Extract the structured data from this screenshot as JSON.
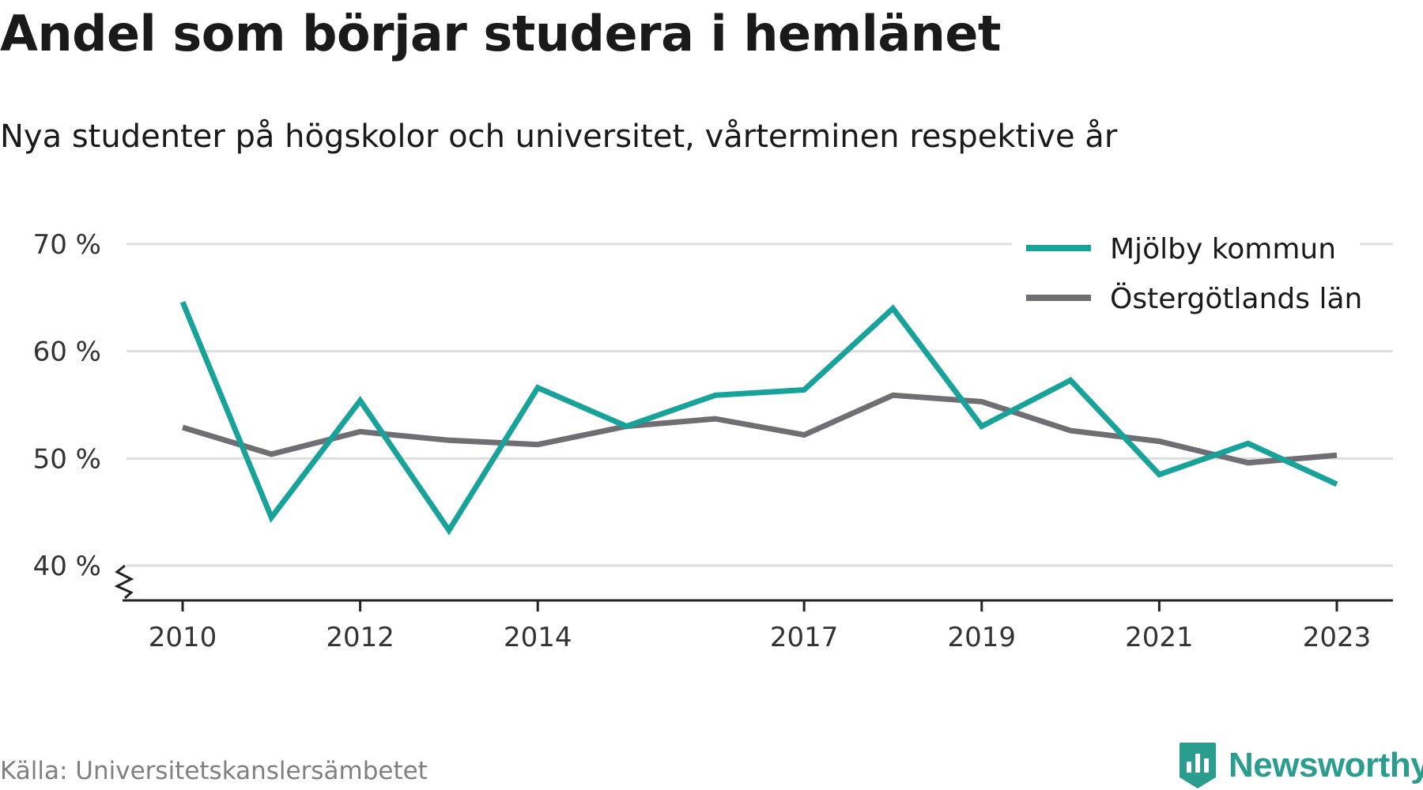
{
  "title": "Andel som börjar studera i hemlänet",
  "subtitle": "Nya studenter på högskolor och universitet, vårterminen respektive år",
  "source": "Källa: Universitetskanslersämbetet",
  "brand": {
    "name": "Newsworthy",
    "icon": "newsworthy-logo-icon",
    "color": "#2a9d8f"
  },
  "chart_data": {
    "type": "line",
    "x": [
      2010,
      2011,
      2012,
      2013,
      2014,
      2015,
      2016,
      2017,
      2018,
      2019,
      2020,
      2021,
      2022,
      2023
    ],
    "series": [
      {
        "name": "Mjölby kommun",
        "color": "#17a39a",
        "values": [
          64.6,
          44.5,
          55.4,
          43.3,
          56.6,
          53.0,
          55.9,
          56.4,
          64.0,
          53.0,
          57.3,
          48.5,
          51.4,
          47.6
        ]
      },
      {
        "name": "Östergötlands län",
        "color": "#6e6e73",
        "values": [
          52.9,
          50.4,
          52.5,
          51.7,
          51.3,
          53.0,
          53.7,
          52.2,
          55.9,
          55.3,
          52.6,
          51.6,
          49.6,
          50.3
        ]
      }
    ],
    "y_ticks": [
      "40 %",
      "50 %",
      "60 %",
      "70 %"
    ],
    "y_tick_values": [
      40,
      50,
      60,
      70
    ],
    "x_ticks": [
      "2010",
      "2012",
      "2014",
      "2017",
      "2019",
      "2021",
      "2023"
    ],
    "x_tick_values": [
      2010,
      2012,
      2014,
      2017,
      2019,
      2021,
      2023
    ],
    "ylim": [
      40,
      70
    ],
    "y_axis_break": true,
    "grid": true,
    "legend_position": "top-right",
    "gridline_color": "#dedede"
  }
}
